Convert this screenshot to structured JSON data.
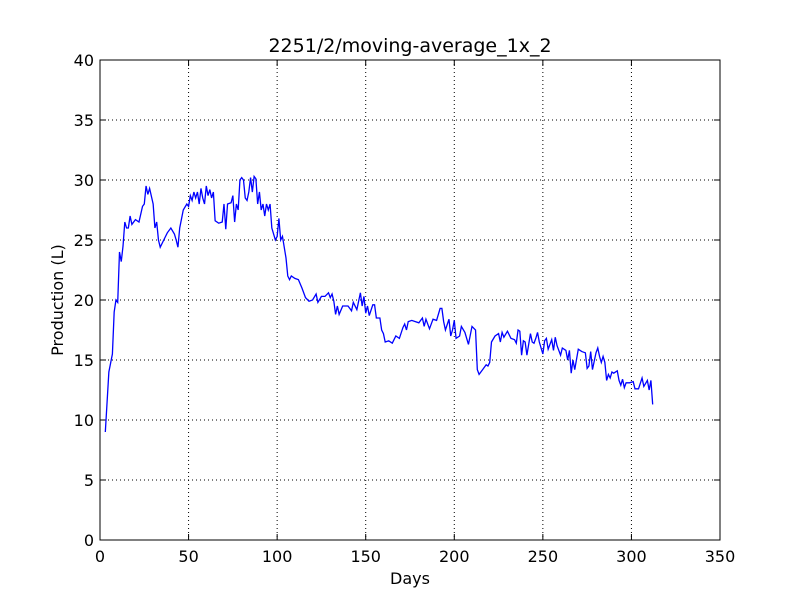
{
  "chart_data": {
    "type": "line",
    "title": "2251/2/moving-average_1x_2",
    "x_label": "Days",
    "y_label": "Production (L)",
    "x": [
      3,
      4,
      5,
      7,
      8,
      9,
      10,
      11,
      12,
      13,
      14,
      15,
      16,
      17,
      18,
      20,
      22,
      24,
      25,
      26,
      27,
      28,
      30,
      31,
      32,
      33,
      34,
      36,
      38,
      40,
      42,
      43,
      44,
      45,
      47,
      49,
      50,
      51,
      52,
      53,
      54,
      55,
      56,
      57,
      58,
      59,
      60,
      61,
      62,
      63,
      64,
      65,
      67,
      69,
      70,
      71,
      72,
      74,
      75,
      76,
      77,
      78,
      79,
      80,
      81,
      82,
      83,
      84,
      85,
      86,
      87,
      88,
      89,
      90,
      91,
      92,
      93,
      94,
      95,
      96,
      97,
      99,
      100,
      101,
      102,
      103,
      105,
      106,
      107,
      108,
      110,
      112,
      114,
      116,
      118,
      120,
      122,
      123,
      125,
      127,
      129,
      130,
      131,
      132,
      133,
      134,
      135,
      137,
      140,
      142,
      143,
      145,
      147,
      148,
      149,
      150,
      151,
      152,
      154,
      155,
      156,
      158,
      159,
      160,
      161,
      163,
      165,
      167,
      169,
      171,
      172,
      173,
      174,
      176,
      178,
      180,
      182,
      183,
      184,
      186,
      188,
      190,
      192,
      193,
      194,
      195,
      197,
      198,
      199,
      200,
      201,
      203,
      204,
      206,
      208,
      210,
      212,
      213,
      214,
      216,
      218,
      219,
      220,
      221,
      223,
      225,
      226,
      227,
      228,
      230,
      232,
      234,
      235,
      236,
      237,
      238,
      239,
      240,
      241,
      243,
      244,
      245,
      246,
      247,
      248,
      250,
      251,
      252,
      253,
      255,
      256,
      257,
      258,
      260,
      261,
      263,
      264,
      265,
      266,
      267,
      268,
      270,
      272,
      274,
      275,
      276,
      277,
      278,
      280,
      281,
      282,
      283,
      284,
      285,
      286,
      287,
      288,
      289,
      290,
      292,
      293,
      294,
      295,
      296,
      297,
      299,
      301,
      302,
      304,
      306,
      307,
      309,
      310,
      311,
      312
    ],
    "series": [
      {
        "name": "moving-average",
        "color": "#0000ff",
        "values": [
          9,
          11.5,
          14,
          15.5,
          19,
          20,
          19.8,
          24,
          23.2,
          24.5,
          26.5,
          26,
          26,
          27,
          26.3,
          26.7,
          26.5,
          27.8,
          28,
          29.5,
          28.8,
          29.3,
          28,
          26,
          26.5,
          25,
          24.4,
          25,
          25.6,
          26,
          25.5,
          25,
          24.4,
          26,
          27.5,
          28,
          27.8,
          28.7,
          28.3,
          29,
          28.5,
          29,
          28,
          29.3,
          28.5,
          28,
          29.5,
          28.7,
          29.2,
          28.5,
          29,
          26.6,
          26.4,
          26.5,
          28,
          25.9,
          28,
          28.1,
          28.7,
          26.5,
          28,
          27.5,
          30,
          30.2,
          30,
          28.5,
          28.3,
          29,
          30.2,
          29,
          30.3,
          30.1,
          28,
          29,
          27.5,
          28,
          27,
          28,
          27.5,
          28,
          26,
          25,
          25.3,
          26.8,
          25,
          25.3,
          23.5,
          22,
          21.7,
          22,
          21.8,
          21.7,
          21,
          20.2,
          19.9,
          20,
          20.5,
          19.8,
          20.3,
          20.3,
          20.6,
          20.2,
          20.5,
          19.9,
          18.8,
          19.5,
          18.8,
          19.5,
          19.5,
          19.1,
          19.8,
          19.2,
          20.6,
          19.5,
          20.3,
          18.9,
          19.5,
          18.7,
          19.6,
          19.6,
          18.5,
          18.5,
          17.5,
          17.2,
          16.5,
          16.6,
          16.4,
          17,
          16.8,
          17.7,
          18,
          17.5,
          18.2,
          18.3,
          18.2,
          18.1,
          18.5,
          17.8,
          18.4,
          17.6,
          18.4,
          18.3,
          19.3,
          19.3,
          18.2,
          17.5,
          18.4,
          17,
          17.5,
          18.3,
          16.8,
          17,
          17.8,
          17.3,
          16.3,
          17.8,
          17.5,
          14.2,
          13.8,
          14.2,
          14.6,
          14.5,
          14.8,
          16.5,
          17,
          17.2,
          16.5,
          17.3,
          16.9,
          17.4,
          16.8,
          16.7,
          16.4,
          17.5,
          17.4,
          15.4,
          16.6,
          16.5,
          15.4,
          17.2,
          16.5,
          16.4,
          16.8,
          17.3,
          16.5,
          15.5,
          16.6,
          16.8,
          15.9,
          16.7,
          15.8,
          16.9,
          16.2,
          15.4,
          16,
          15.8,
          15,
          15.8,
          13.9,
          15,
          14.2,
          15.9,
          15.7,
          15.6,
          14.3,
          14.5,
          15.7,
          14.2,
          15.6,
          16,
          15.3,
          14.8,
          15.3,
          14.8,
          13.3,
          13.8,
          13.5,
          14,
          13.9,
          14.1,
          13.3,
          12.9,
          13.4,
          12.7,
          13.1,
          13.1,
          13.2,
          12.6,
          12.6,
          13.5,
          12.8,
          13.3,
          12.5,
          13.3,
          11.3
        ]
      }
    ],
    "xlim": [
      0,
      350
    ],
    "xticks": [
      0,
      50,
      100,
      150,
      200,
      250,
      300,
      350
    ],
    "ylim": [
      0,
      40
    ],
    "yticks": [
      0,
      5,
      10,
      15,
      20,
      25,
      30,
      35,
      40
    ],
    "grid": true
  }
}
